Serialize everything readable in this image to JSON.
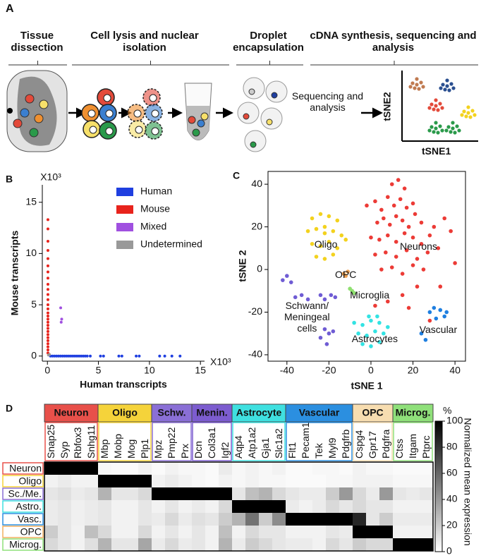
{
  "panel_a": {
    "label": "A",
    "steps": [
      "Tissue dissection",
      "Cell lysis and nuclear isolation",
      "Droplet encapsulation",
      "cDNA synthesis, sequencing and analysis"
    ],
    "sequencing_text": "Sequencing and analysis",
    "x_label": "tSNE1",
    "y_label": "tSNE2"
  },
  "chart_data": [
    {
      "type": "scatter",
      "label": "B",
      "x_label": "Human transcripts",
      "y_label": "Mouse transcripts",
      "x_multiplier": "X10³",
      "y_multiplier": "X10³",
      "xlim": [
        -0.5,
        15.4
      ],
      "ylim": [
        -0.5,
        16.7
      ],
      "xticks": [
        0,
        5,
        10,
        15
      ],
      "yticks": [
        0,
        5,
        10,
        15
      ],
      "legend_loc": "upper right",
      "series": [
        {
          "name": "Human",
          "color": "#1f3fe0",
          "x": [
            0.3,
            0.5,
            0.7,
            0.9,
            1.1,
            1.3,
            1.5,
            1.7,
            1.9,
            2.1,
            2.3,
            2.5,
            2.7,
            2.9,
            3.1,
            3.3,
            3.5,
            3.7,
            3.9,
            4.2,
            5.2,
            5.5,
            7.0,
            7.3,
            8.7,
            9.0,
            11.0,
            11.5,
            12.2,
            13.0
          ],
          "values": [
            0,
            0,
            0,
            0,
            0,
            0,
            0,
            0,
            0,
            0,
            0,
            0,
            0,
            0,
            0,
            0,
            0,
            0,
            0,
            0,
            0,
            0,
            0,
            0,
            0,
            0,
            0,
            0,
            0,
            0
          ]
        },
        {
          "name": "Mouse",
          "color": "#e8231c",
          "x": [
            0.05,
            0.05,
            0.05,
            0.05,
            0.05,
            0.05,
            0.05,
            0.05,
            0.05,
            0.05,
            0.05,
            0.05,
            0.05,
            0.05,
            0.05,
            0.05,
            0.05,
            0.05,
            0.05,
            0.05,
            0.05,
            0.05,
            0.05,
            0.05,
            0.05,
            0.05,
            0.05,
            0.05
          ],
          "values": [
            0.3,
            0.6,
            0.9,
            1.2,
            1.5,
            1.8,
            2.1,
            2.4,
            2.7,
            3.0,
            3.3,
            3.6,
            3.9,
            4.2,
            4.6,
            5.0,
            5.5,
            6.0,
            6.5,
            7.0,
            7.6,
            8.2,
            8.8,
            9.5,
            10.3,
            11.2,
            12.4,
            13.3
          ]
        },
        {
          "name": "Mixed",
          "color": "#a050e0",
          "x": [
            1.3,
            1.35,
            1.4
          ],
          "values": [
            4.7,
            3.3,
            3.6
          ]
        },
        {
          "name": "Undetermined",
          "color": "#999999",
          "x": [
            0.1,
            0.2
          ],
          "values": [
            0.1,
            0.15
          ]
        }
      ]
    },
    {
      "type": "scatter",
      "label": "C",
      "x_label": "tSNE 1",
      "y_label": "tSNE 2",
      "xlim": [
        -49,
        45
      ],
      "ylim": [
        -43,
        46
      ],
      "xticks": [
        -40,
        -20,
        0,
        20,
        40
      ],
      "yticks": [
        -40,
        -20,
        0,
        20,
        40
      ],
      "frame": true,
      "series_labels": "in_plot",
      "series": [
        {
          "name": "Neurons",
          "color": "#ec3b36",
          "x": [
            -2,
            2,
            5,
            8,
            11,
            14,
            17,
            20,
            3,
            6,
            9,
            12,
            15,
            18,
            21,
            24,
            0,
            4,
            8,
            12,
            16,
            20,
            24,
            28,
            2,
            7,
            12,
            17,
            22,
            27,
            32,
            5,
            10,
            15,
            20,
            25,
            10,
            13,
            16,
            30,
            35,
            38,
            33,
            2,
            40,
            8,
            15,
            18,
            22,
            28
          ],
          "values": [
            30,
            32,
            28,
            34,
            30,
            33,
            29,
            31,
            22,
            24,
            21,
            25,
            23,
            20,
            26,
            22,
            15,
            14,
            16,
            13,
            17,
            15,
            12,
            16,
            7,
            8,
            6,
            9,
            5,
            8,
            10,
            0,
            1,
            -2,
            2,
            0,
            40,
            42,
            38,
            20,
            24,
            18,
            -8,
            -17,
            3,
            -15,
            -12,
            -18,
            -8,
            -24
          ]
        },
        {
          "name": "Oligo",
          "color": "#f3d21e",
          "x": [
            -28,
            -24,
            -20,
            -16,
            -30,
            -26,
            -22,
            -18,
            -14,
            -28,
            -24,
            -20,
            -16,
            -26,
            -22,
            -18,
            -22,
            -12
          ],
          "values": [
            24,
            26,
            25,
            23,
            18,
            19,
            17,
            18,
            16,
            12,
            11,
            13,
            10,
            6,
            5,
            7,
            20,
            14
          ]
        },
        {
          "name": "OPC",
          "color": "#f0a050",
          "x": [
            -13,
            -12,
            -11
          ],
          "values": [
            -2,
            -3,
            -1
          ]
        },
        {
          "name": "Microglia",
          "color": "#8fe070",
          "x": [
            -9,
            -8,
            -10
          ],
          "values": [
            -10,
            -11,
            -9
          ]
        },
        {
          "name": "Schwann/ Meningeal cells",
          "color": "#6f5cd4",
          "x": [
            -42,
            -40,
            -38,
            -36,
            -33,
            -30,
            -24,
            -22,
            -19,
            -17,
            -22,
            -20,
            -24,
            -18,
            -21
          ],
          "values": [
            -5,
            -3,
            -6,
            -13,
            -12,
            -14,
            -12,
            -14,
            -12,
            -13,
            -28,
            -30,
            -32,
            -29,
            -35
          ]
        },
        {
          "name": "Astrocytes",
          "color": "#33e3e3",
          "x": [
            -8,
            -4,
            0,
            4,
            8,
            -6,
            -2,
            2,
            6,
            -4,
            0,
            4,
            -1,
            3
          ],
          "values": [
            -25,
            -26,
            -24,
            -25,
            -27,
            -30,
            -31,
            -29,
            -30,
            -35,
            -36,
            -34,
            -22,
            -22
          ]
        },
        {
          "name": "Vascular",
          "color": "#1f7fe0",
          "x": [
            30,
            33,
            36,
            31,
            35,
            28,
            24,
            26
          ],
          "values": [
            -18,
            -19,
            -20,
            -23,
            -22,
            -20,
            -30,
            -33
          ]
        }
      ]
    },
    {
      "type": "heatmap",
      "label": "D",
      "groups": [
        {
          "name": "Neuron",
          "color": "#e8504a",
          "genes": [
            "Snap25",
            "Syp",
            "Rbfox3",
            "Snhg11"
          ]
        },
        {
          "name": "Oligo",
          "color": "#f5d33a",
          "genes": [
            "Mbp",
            "Mobp",
            "Mog",
            "Plp1"
          ]
        },
        {
          "name": "Schw.",
          "color": "#8a6fd6",
          "genes": [
            "Mpz",
            "Pmp22",
            "Prx"
          ]
        },
        {
          "name": "Menin.",
          "color": "#7c5ccf",
          "genes": [
            "Dcn",
            "Col3a1",
            "Igf2"
          ]
        },
        {
          "name": "Astrocyte",
          "color": "#3fe0e0",
          "genes": [
            "Aqp4",
            "Atp1a2",
            "Gja1",
            "Slc1a2"
          ]
        },
        {
          "name": "Vascular",
          "color": "#2b8fe0",
          "genes": [
            "Flt1",
            "Pecam1",
            "Tek",
            "Myl9",
            "Pdgfrb"
          ]
        },
        {
          "name": "OPC",
          "color": "#f7ddb0",
          "genes": [
            "Cspg4",
            "Gpr17",
            "Pdgfra"
          ]
        },
        {
          "name": "Microg.",
          "color": "#8fe07a",
          "genes": [
            "Ctss",
            "Itgam",
            "Ptprc"
          ]
        }
      ],
      "rows": [
        "Neuron",
        "Oligo",
        "Sc./Me.",
        "Astro.",
        "Vasc.",
        "OPC",
        "Microg."
      ],
      "row_colors": [
        "#e8504a",
        "#f5d33a",
        "#8a6fd6",
        "#3fe0e0",
        "#2b8fe0",
        "#f2b060",
        "#8fe07a"
      ],
      "values": [
        [
          100,
          100,
          100,
          100,
          3,
          2,
          2,
          5,
          2,
          5,
          3,
          3,
          2,
          8,
          3,
          5,
          3,
          5,
          2,
          2,
          3,
          3,
          2,
          5,
          3,
          3,
          2,
          2,
          2
        ],
        [
          5,
          8,
          5,
          5,
          100,
          100,
          100,
          100,
          5,
          8,
          5,
          3,
          2,
          5,
          3,
          5,
          3,
          3,
          2,
          2,
          2,
          3,
          3,
          5,
          5,
          5,
          3,
          3,
          3
        ],
        [
          10,
          12,
          8,
          10,
          30,
          10,
          10,
          15,
          100,
          100,
          100,
          100,
          100,
          100,
          10,
          25,
          30,
          15,
          10,
          8,
          8,
          20,
          40,
          15,
          8,
          40,
          10,
          8,
          10
        ],
        [
          8,
          10,
          6,
          8,
          10,
          5,
          5,
          10,
          5,
          10,
          5,
          8,
          5,
          15,
          100,
          100,
          100,
          100,
          8,
          5,
          8,
          15,
          10,
          15,
          10,
          10,
          5,
          5,
          5
        ],
        [
          8,
          10,
          6,
          8,
          10,
          5,
          5,
          10,
          8,
          15,
          8,
          12,
          10,
          20,
          30,
          55,
          20,
          45,
          100,
          100,
          100,
          100,
          100,
          85,
          10,
          20,
          8,
          8,
          8
        ],
        [
          20,
          10,
          5,
          25,
          15,
          5,
          5,
          15,
          5,
          10,
          5,
          10,
          5,
          25,
          5,
          15,
          10,
          10,
          5,
          5,
          5,
          10,
          8,
          100,
          100,
          100,
          5,
          5,
          5
        ],
        [
          15,
          10,
          5,
          12,
          30,
          10,
          10,
          35,
          8,
          15,
          8,
          10,
          5,
          30,
          8,
          20,
          15,
          10,
          8,
          8,
          5,
          15,
          10,
          20,
          15,
          15,
          100,
          100,
          100
        ]
      ],
      "zlim": [
        0,
        100
      ],
      "zticks": [
        0,
        20,
        40,
        60,
        80,
        100
      ],
      "colorbar_unit": "%",
      "colorbar_label": "Normalized mean expression"
    }
  ]
}
